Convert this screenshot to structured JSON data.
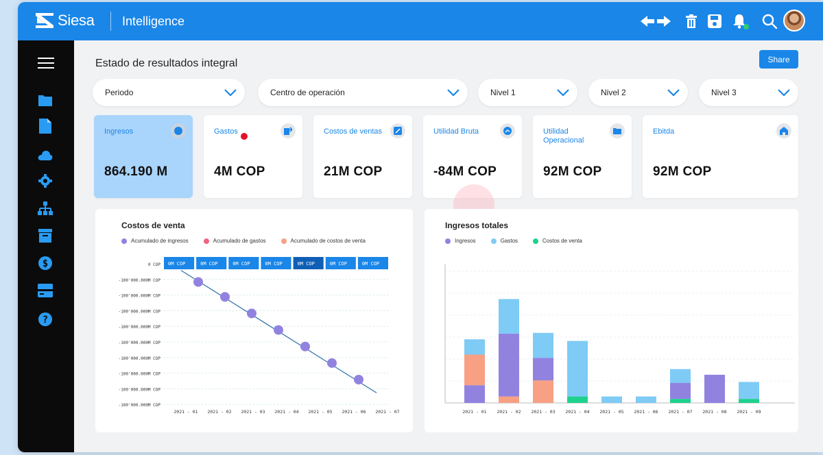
{
  "brand": {
    "logo_text": "Siesa",
    "app_name": "Intelligence"
  },
  "topbar_icons": [
    "arrows-icon",
    "trash-icon",
    "save-icon",
    "bell-icon",
    "search-icon"
  ],
  "sidebar_icons": [
    "menu-icon",
    "folder-icon",
    "file-icon",
    "cloud-icon",
    "gear-icon",
    "hierarchy-icon",
    "archive-icon",
    "dollar-icon",
    "card-icon",
    "help-icon"
  ],
  "page": {
    "title": "Estado de resultados integral",
    "share_label": "Share"
  },
  "filters": [
    "Periodo",
    "Centro de operación",
    "Nivel 1",
    "Nivel 2",
    "Nivel 3"
  ],
  "kpis": [
    {
      "label": "Ingresos",
      "value": "864.190 M",
      "active": true
    },
    {
      "label": "Gastos",
      "value": "4M COP"
    },
    {
      "label": "Costos de ventas",
      "value": "21M COP"
    },
    {
      "label": "Utilidad Bruta",
      "value": "-84M COP"
    },
    {
      "label": "Utilidad Operacional",
      "value": "92M COP"
    },
    {
      "label": "Ebitda",
      "value": "92M COP"
    }
  ],
  "colors": {
    "primary": "#1a86e8",
    "purple": "#9182e0",
    "pink": "#f06480",
    "salmon": "#f7a083",
    "lightblue": "#7ecbf5",
    "green": "#1ed18c"
  },
  "chart_data": [
    {
      "type": "line",
      "title": "Costos de venta",
      "legend": [
        "Acumulado de ingresos",
        "Acumulado de gastos",
        "Acumulado de costos de venta"
      ],
      "y_tick_labels": [
        "0 COP",
        "-100'000.000M COP",
        "-100'000.000M COP",
        "-100'000.000M COP",
        "-100'000.000M COP",
        "-100'000.000M COP",
        "-100'000.000M COP",
        "-100'000.000M COP",
        "-100'000.000M COP",
        "-100'000.000M COP"
      ],
      "categories": [
        "2021 - 01",
        "2021 - 02",
        "2021 - 03",
        "2021 - 04",
        "2021 - 05",
        "2021 - 06",
        "2021 - 07"
      ],
      "header_cells": [
        "0M COP",
        "0M COP",
        "0M COP",
        "0M COP",
        "0M COP",
        "0M COP",
        "0M COP"
      ],
      "points": [
        {
          "x": "2021 - 01",
          "y": -1.1
        },
        {
          "x": "2021 - 02",
          "y": -2.0
        },
        {
          "x": "2021 - 03",
          "y": -3.0
        },
        {
          "x": "2021 - 04",
          "y": -4.0
        },
        {
          "x": "2021 - 05",
          "y": -5.0
        },
        {
          "x": "2021 - 06",
          "y": -6.0
        },
        {
          "x": "2021 - 07",
          "y": -7.0
        }
      ],
      "y_range": [
        -8.5,
        0
      ],
      "legend_position": "top-left"
    },
    {
      "type": "bar",
      "stacked": true,
      "title": "Ingresos totales",
      "legend": [
        "Ingresos",
        "Gastos",
        "Costos de venta"
      ],
      "categories": [
        "2021 - 01",
        "2021 - 02",
        "2021 - 03",
        "2021 - 04",
        "2021 - 05",
        "2021 - 06",
        "2021 - 07",
        "2021 - 08",
        "2021 - 09"
      ],
      "series": [
        {
          "name": "Costos de venta",
          "color": "green",
          "values": [
            0,
            0,
            0,
            8,
            0,
            0,
            5,
            0,
            5
          ]
        },
        {
          "name": "Gastos",
          "color": "salmon",
          "values": [
            0,
            8,
            28,
            0,
            0,
            0,
            0,
            0,
            0
          ]
        },
        {
          "name": "Ingresos",
          "color": "purple",
          "values": [
            22,
            78,
            0,
            0,
            0,
            0,
            20,
            35,
            0
          ]
        },
        {
          "name": "_salmon_low",
          "color": "salmon",
          "values": [
            38,
            0,
            0,
            0,
            0,
            0,
            0,
            0,
            0
          ]
        },
        {
          "name": "_purple_mid",
          "color": "purple",
          "values": [
            0,
            0,
            28,
            0,
            0,
            0,
            0,
            0,
            0
          ]
        },
        {
          "name": "_lightblue",
          "color": "lightblue",
          "values": [
            19,
            43,
            31,
            69,
            8,
            8,
            17,
            0,
            21
          ]
        }
      ],
      "y_range": [
        0,
        160
      ],
      "legend_position": "top-left"
    }
  ]
}
